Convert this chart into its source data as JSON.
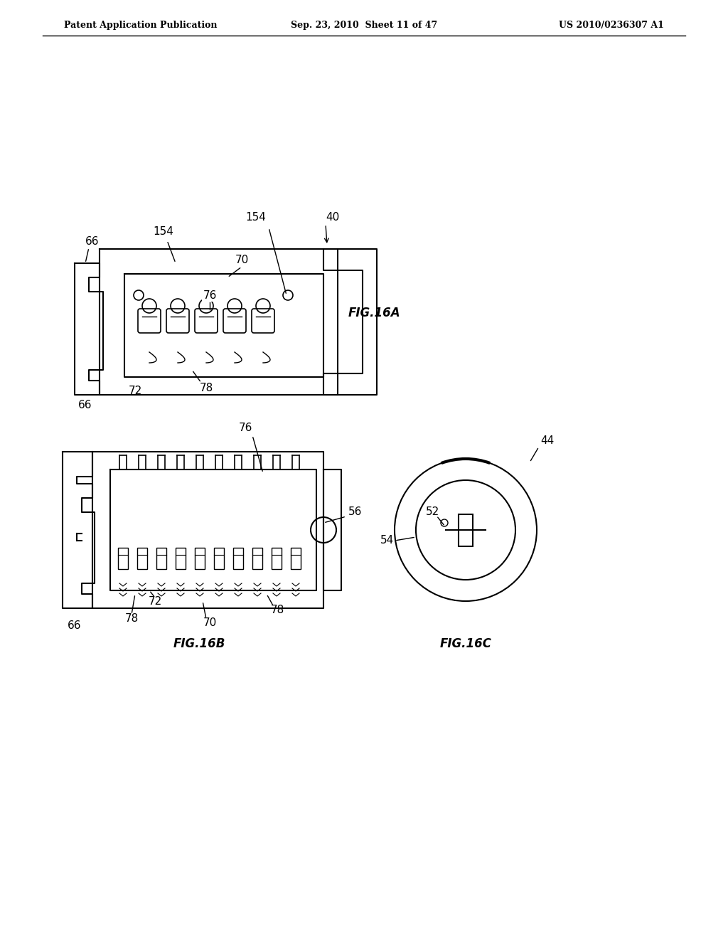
{
  "bg_color": "#ffffff",
  "text_color": "#000000",
  "header_left": "Patent Application Publication",
  "header_center": "Sep. 23, 2010  Sheet 11 of 47",
  "header_right": "US 2010/0236307 A1",
  "fig16a_label": "FIG.16A",
  "fig16b_label": "FIG.16B",
  "fig16c_label": "FIG.16C",
  "line_color": "#000000",
  "line_width": 1.5,
  "annotation_fontsize": 11
}
